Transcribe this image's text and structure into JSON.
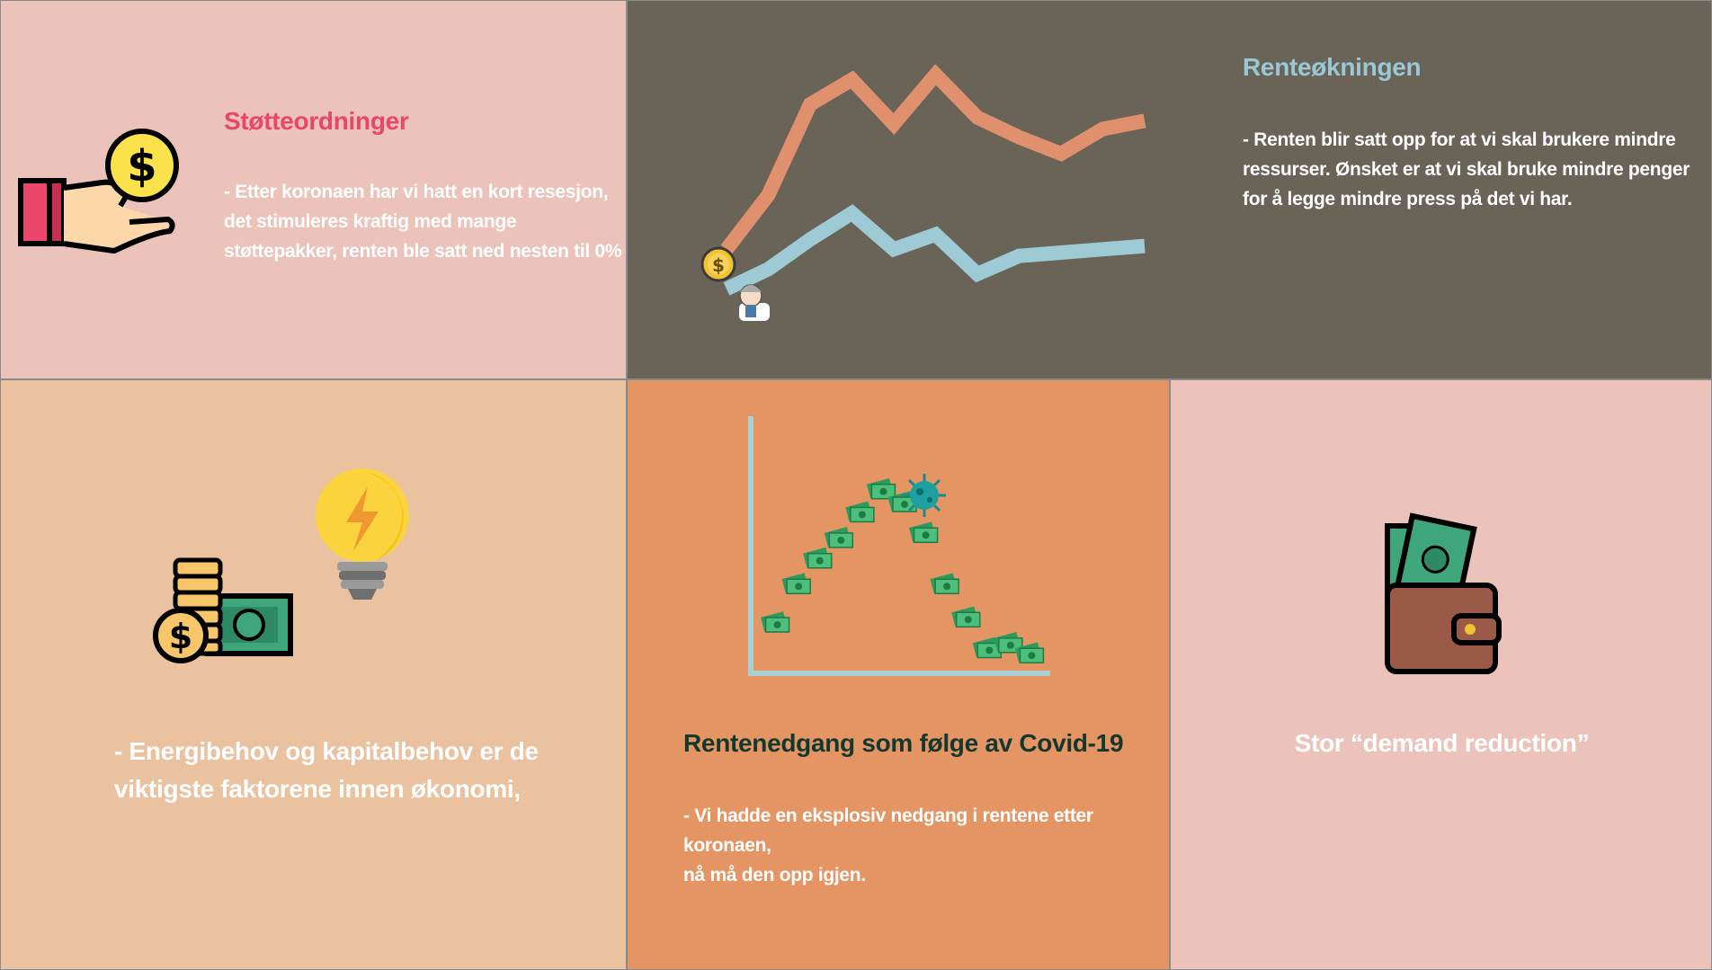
{
  "colors": {
    "panel1_bg": "#ebc3ba",
    "panel2_bg": "#696358",
    "panel3_bg": "#eac29f",
    "panel4_bg": "#e59563",
    "panel5_bg": "#ebc3ba",
    "title_pink": "#e8466a",
    "title_blue": "#9ac8d6",
    "title_dark_green": "#14382e",
    "line_orange": "#e0906c",
    "line_blue": "#9ecad6"
  },
  "panel1": {
    "title": "Støtteordninger",
    "body": [
      "- Etter  koronaen har vi hatt en kort resesjon,",
      "det stimuleres kraftig med mange",
      "støttepakker, renten ble satt ned nesten til 0%"
    ],
    "icon": "hand-coin-icon"
  },
  "panel2": {
    "title": "Renteøkningen",
    "body": [
      "- Renten blir satt opp for at vi skal brukere mindre",
      "ressurser. Ønsket er at vi skal bruke mindre penger",
      "for å legge mindre press på det vi har."
    ],
    "chart_icons": [
      "coin-icon",
      "person-icon"
    ]
  },
  "panel3": {
    "body": [
      "- Energibehov og kapitalbehov er de",
      "viktigste faktorene innen økonomi,"
    ],
    "icons": [
      "coins-cash-icon",
      "lightbulb-icon"
    ]
  },
  "panel4": {
    "title": "Rentenedgang som følge av Covid-19",
    "body": [
      "- Vi hadde en eksplosiv nedgang i rentene etter koronaen,",
      "nå må den opp igjen."
    ],
    "icons": [
      "virus-icon",
      "money-icon"
    ]
  },
  "panel5": {
    "title": "Stor “demand reduction”",
    "icon": "wallet-icon"
  },
  "chart_data": [
    {
      "type": "line",
      "title": "",
      "xlabel": "",
      "ylabel": "",
      "x": [
        0,
        1,
        2,
        3,
        4,
        5,
        6,
        7,
        8,
        9,
        10
      ],
      "series": [
        {
          "name": "orange",
          "values": [
            62,
            95,
            150,
            165,
            138,
            168,
            142,
            130,
            120,
            135,
            140
          ]
        },
        {
          "name": "blue",
          "values": [
            38,
            50,
            68,
            84,
            62,
            71,
            47,
            58,
            60,
            62,
            64
          ]
        }
      ],
      "ylim": [
        0,
        180
      ],
      "grid": false
    },
    {
      "type": "scatter",
      "title": "",
      "xlabel": "",
      "ylabel": "",
      "x": [
        1,
        2,
        3,
        4,
        5,
        6,
        7,
        8,
        9,
        10,
        11,
        12,
        13
      ],
      "y": [
        20,
        35,
        45,
        53,
        63,
        72,
        67,
        55,
        35,
        22,
        10,
        12,
        8
      ],
      "xlim": [
        0,
        14
      ],
      "ylim": [
        0,
        100
      ],
      "grid": false
    }
  ]
}
